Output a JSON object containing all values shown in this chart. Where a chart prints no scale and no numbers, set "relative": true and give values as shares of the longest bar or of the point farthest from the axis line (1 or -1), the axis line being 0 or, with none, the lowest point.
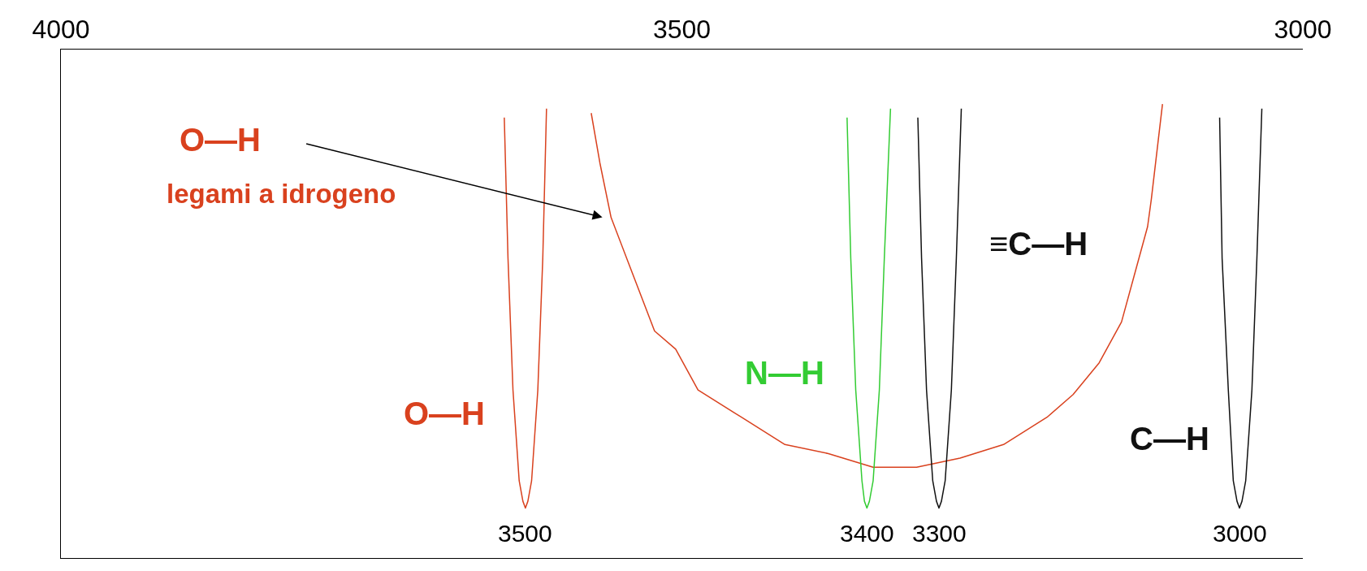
{
  "chart_data": {
    "type": "line",
    "relative": true,
    "xlim": [
      4000,
      3000
    ],
    "xticks": [
      4000,
      3500,
      3000
    ],
    "grid": false,
    "legend": false,
    "marker": "none",
    "line_style": "solid",
    "annotations": [
      "O—H",
      "legami a idrogeno",
      "3500",
      "3400",
      "3300",
      "3000"
    ],
    "series": [
      {
        "name": "O—H",
        "color": "#d9411e",
        "x": [
          3643,
          3640,
          3636,
          3631,
          3628,
          3626,
          3624,
          3621,
          3616,
          3612,
          3609
        ],
        "values": [
          0.97,
          0.66,
          0.37,
          0.17,
          0.125,
          0.11,
          0.125,
          0.17,
          0.37,
          0.66,
          0.99
        ]
      },
      {
        "color": "#d9411e",
        "x": [
          3573,
          3566,
          3557,
          3543,
          3522,
          3505,
          3487,
          3452,
          3417,
          3382,
          3346,
          3339,
          3311,
          3276,
          3241,
          3206,
          3185,
          3164,
          3146,
          3136,
          3125,
          3122,
          3113
        ],
        "values": [
          0.98,
          0.87,
          0.75,
          0.65,
          0.5,
          0.46,
          0.37,
          0.31,
          0.25,
          0.23,
          0.2,
          0.2,
          0.2,
          0.22,
          0.25,
          0.31,
          0.36,
          0.43,
          0.52,
          0.62,
          0.73,
          0.79,
          1
        ]
      },
      {
        "name": "N—H",
        "color": "#33cc33",
        "x": [
          3367,
          3364,
          3360,
          3355,
          3353,
          3351,
          3349,
          3346,
          3341,
          3337,
          3332
        ],
        "values": [
          0.97,
          0.66,
          0.37,
          0.17,
          0.125,
          0.11,
          0.125,
          0.17,
          0.37,
          0.66,
          0.99
        ]
      },
      {
        "name": "≡C—H",
        "color": "#111111",
        "x": [
          3310,
          3307,
          3303,
          3298,
          3295,
          3293,
          3291,
          3288,
          3283,
          3279,
          3275
        ],
        "values": [
          0.97,
          0.66,
          0.37,
          0.17,
          0.125,
          0.11,
          0.125,
          0.17,
          0.37,
          0.66,
          0.99
        ]
      },
      {
        "name": "C—H",
        "color": "#111111",
        "x": [
          3067,
          3065,
          3060,
          3056,
          3053,
          3051,
          3049,
          3046,
          3041,
          3037,
          3033
        ],
        "values": [
          0.97,
          0.66,
          0.37,
          0.17,
          0.125,
          0.11,
          0.125,
          0.17,
          0.37,
          0.66,
          0.99
        ]
      }
    ]
  }
}
